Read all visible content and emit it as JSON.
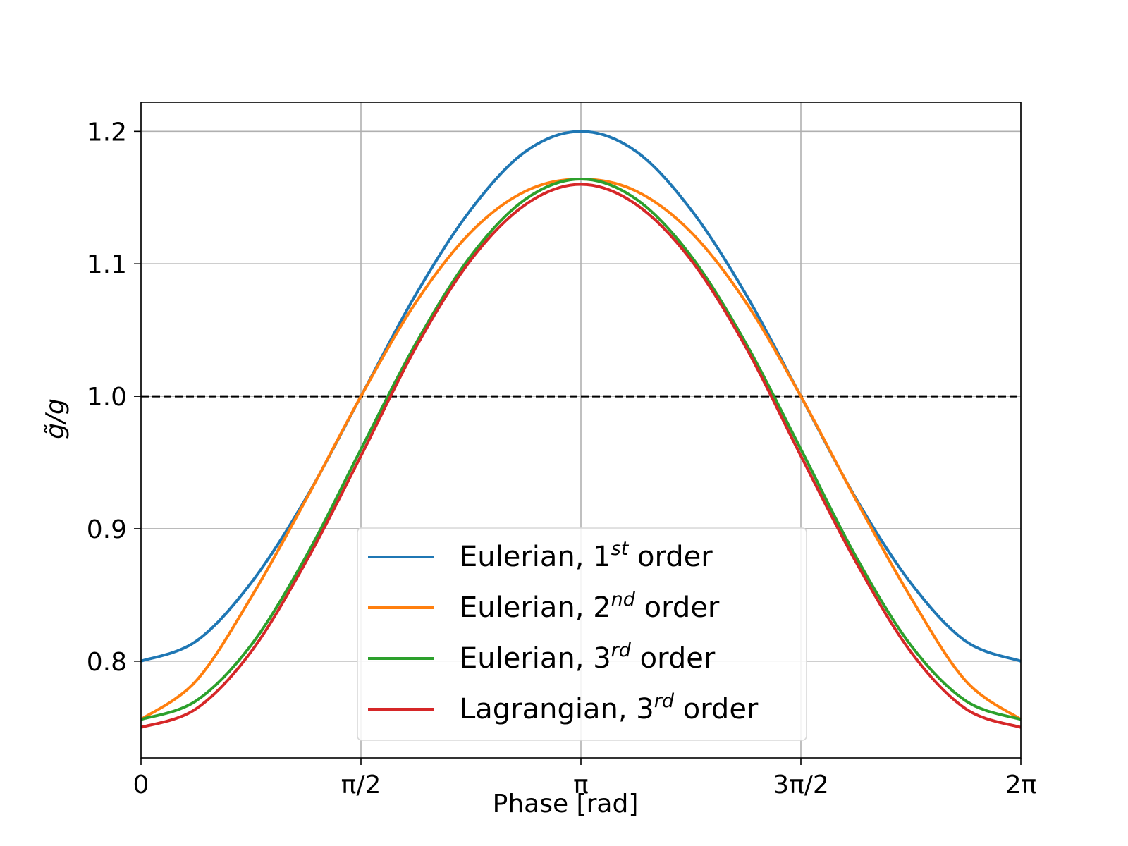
{
  "chart_data": {
    "type": "line",
    "title": "",
    "xlabel": "Phase [rad]",
    "ylabel": "g̃/g",
    "xlim": [
      0,
      6.283185307179586
    ],
    "ylim": [
      0.727,
      1.222
    ],
    "grid": true,
    "legend_position": "lower center",
    "x_ticks": [
      {
        "value": 0,
        "label": "0"
      },
      {
        "value": 1.5707963267948966,
        "label": "π/2"
      },
      {
        "value": 3.141592653589793,
        "label": "π"
      },
      {
        "value": 4.71238898038469,
        "label": "3π/2"
      },
      {
        "value": 6.283185307179586,
        "label": "2π"
      }
    ],
    "y_ticks": [
      {
        "value": 0.8,
        "label": "0.8"
      },
      {
        "value": 0.9,
        "label": "0.9"
      },
      {
        "value": 1.0,
        "label": "1.0"
      },
      {
        "value": 1.1,
        "label": "1.1"
      },
      {
        "value": 1.2,
        "label": "1.2"
      }
    ],
    "reference_line": {
      "y": 1.0,
      "style": "dashed",
      "color": "#000000"
    },
    "x": [
      0,
      0.3927,
      0.7854,
      1.1781,
      1.5708,
      1.9635,
      2.3562,
      2.7489,
      3.1416,
      3.5343,
      3.927,
      4.3197,
      4.7124,
      5.1051,
      5.4978,
      5.8905,
      6.2832
    ],
    "series": [
      {
        "legend": {
          "base": "Eulerian, 1",
          "sup": "st",
          "suffix": " order"
        },
        "color": "#1f77b4",
        "values": [
          0.8,
          0.815,
          0.859,
          0.923,
          1.0,
          1.077,
          1.141,
          1.185,
          1.2,
          1.185,
          1.141,
          1.077,
          1.0,
          0.923,
          0.859,
          0.815,
          0.8
        ]
      },
      {
        "legend": {
          "base": "Eulerian, 2",
          "sup": "nd",
          "suffix": " order"
        },
        "color": "#ff7f0e",
        "values": [
          0.756,
          0.785,
          0.848,
          0.922,
          1.0,
          1.071,
          1.124,
          1.155,
          1.164,
          1.155,
          1.124,
          1.071,
          1.0,
          0.922,
          0.848,
          0.785,
          0.756
        ]
      },
      {
        "legend": {
          "base": "Eulerian, 3",
          "sup": "rd",
          "suffix": " order"
        },
        "color": "#2ca02c",
        "values": [
          0.756,
          0.77,
          0.812,
          0.879,
          0.96,
          1.04,
          1.106,
          1.149,
          1.164,
          1.149,
          1.106,
          1.04,
          0.96,
          0.879,
          0.812,
          0.77,
          0.756
        ]
      },
      {
        "legend": {
          "base": "Lagrangian, 3",
          "sup": "rd",
          "suffix": " order"
        },
        "color": "#d62728",
        "values": [
          0.75,
          0.764,
          0.807,
          0.875,
          0.955,
          1.037,
          1.103,
          1.145,
          1.16,
          1.145,
          1.103,
          1.037,
          0.955,
          0.875,
          0.807,
          0.764,
          0.75
        ]
      }
    ]
  }
}
